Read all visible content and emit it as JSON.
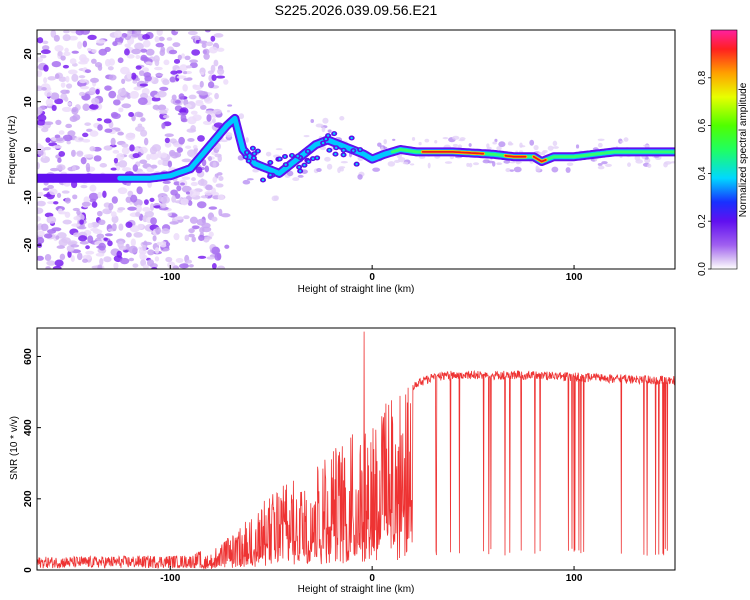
{
  "title": "S225.2026.039.09.56.E21",
  "chart_data": [
    {
      "id": "spectrogram",
      "type": "heatmap",
      "xlabel": "Height of straight line (km)",
      "ylabel": "Frequency (Hz)",
      "xlim": [
        -166,
        150
      ],
      "ylim": [
        -25,
        25
      ],
      "xticks": [
        -100,
        0,
        100
      ],
      "yticks": [
        -20,
        -10,
        0,
        10,
        20
      ],
      "ridge": {
        "x": [
          -166,
          -150,
          -130,
          -110,
          -100,
          -90,
          -84,
          -80,
          -76,
          -72,
          -68,
          -64,
          -58,
          -52,
          -46,
          -40,
          -34,
          -28,
          -22,
          -16,
          -10,
          -4,
          0,
          6,
          14,
          22,
          40,
          60,
          70,
          80,
          84,
          90,
          100,
          110,
          120,
          135,
          150
        ],
        "y": [
          -6,
          -6,
          -6,
          -6,
          -5.5,
          -4,
          -1,
          1,
          3,
          5,
          6.5,
          0,
          -3,
          -4,
          -5,
          -3,
          -1,
          1,
          2,
          1,
          0,
          -1,
          -2,
          -1,
          0,
          -0.5,
          -0.5,
          -1,
          -1.5,
          -1.5,
          -2.5,
          -1.5,
          -1.5,
          -1,
          -0.5,
          -0.5,
          -0.5
        ]
      },
      "strong_segments": [
        [
          25,
          55
        ],
        [
          66,
          76
        ],
        [
          80,
          86
        ]
      ],
      "colorbar": {
        "label": "Normalized spectral amplitude",
        "ticks": [
          0.0,
          0.2,
          0.4,
          0.6,
          0.8
        ],
        "tick_labels": [
          "0.0",
          "0.2",
          "0.4",
          "0.6",
          "0.8"
        ],
        "range": [
          0,
          1
        ]
      }
    },
    {
      "id": "snr",
      "type": "line",
      "xlabel": "Height of straight line (km)",
      "ylabel": "SNR (10 * v/v)",
      "xlim": [
        -166,
        150
      ],
      "ylim": [
        0,
        680
      ],
      "xticks": [
        -100,
        0,
        100
      ],
      "yticks": [
        0,
        200,
        400,
        600
      ],
      "color": "#ee3333",
      "envelope": {
        "x": [
          -166,
          -90,
          -80,
          -70,
          -60,
          -50,
          -40,
          -30,
          -20,
          -10,
          0,
          10,
          20,
          30,
          40,
          60,
          80,
          100,
          120,
          150
        ],
        "y": [
          20,
          25,
          50,
          100,
          150,
          220,
          250,
          280,
          340,
          390,
          430,
          490,
          530,
          555,
          560,
          560,
          560,
          555,
          550,
          545
        ]
      },
      "peak": {
        "x": -4,
        "y": 670
      },
      "dropouts": {
        "x_range": [
          30,
          150
        ],
        "min_value": 40
      }
    }
  ]
}
